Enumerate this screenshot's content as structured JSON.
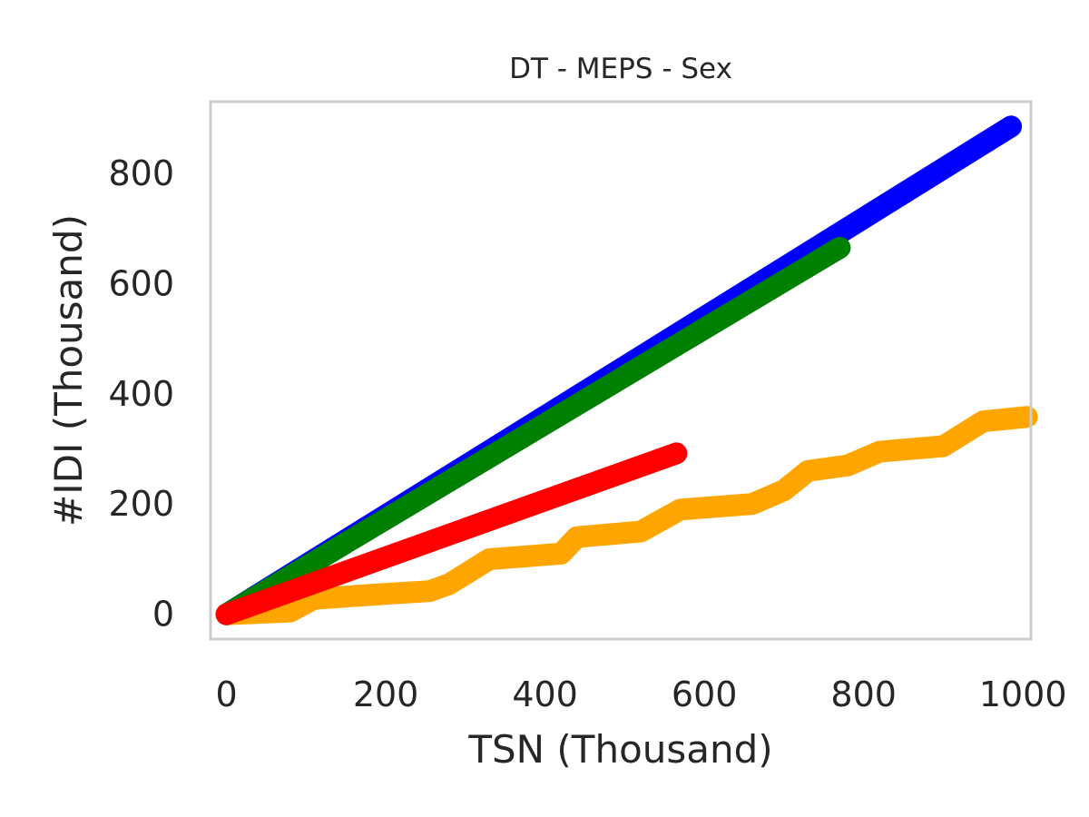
{
  "chart_data": {
    "type": "line",
    "title": "DT - MEPS - Sex",
    "xlabel": "TSN (Thousand)",
    "ylabel": "#IDI (Thousand)",
    "xlim": [
      -20,
      1010
    ],
    "ylim": [
      -45,
      930
    ],
    "xticks": [
      0,
      200,
      400,
      600,
      800,
      1000
    ],
    "yticks": [
      0,
      200,
      400,
      600,
      800
    ],
    "grid": false,
    "legend": false,
    "series": [
      {
        "color": "#0000ff",
        "points": [
          [
            0,
            0
          ],
          [
            985,
            885
          ]
        ]
      },
      {
        "color": "#ffa500",
        "points": [
          [
            0,
            0
          ],
          [
            80,
            5
          ],
          [
            110,
            28
          ],
          [
            180,
            35
          ],
          [
            255,
            42
          ],
          [
            280,
            55
          ],
          [
            330,
            100
          ],
          [
            420,
            110
          ],
          [
            440,
            140
          ],
          [
            520,
            150
          ],
          [
            570,
            190
          ],
          [
            660,
            200
          ],
          [
            700,
            225
          ],
          [
            730,
            260
          ],
          [
            780,
            270
          ],
          [
            820,
            295
          ],
          [
            900,
            305
          ],
          [
            950,
            350
          ],
          [
            1005,
            358
          ]
        ]
      },
      {
        "color": "#008000",
        "points": [
          [
            0,
            0
          ],
          [
            770,
            665
          ]
        ]
      },
      {
        "color": "#ff0000",
        "points": [
          [
            0,
            0
          ],
          [
            565,
            292
          ]
        ]
      }
    ]
  }
}
